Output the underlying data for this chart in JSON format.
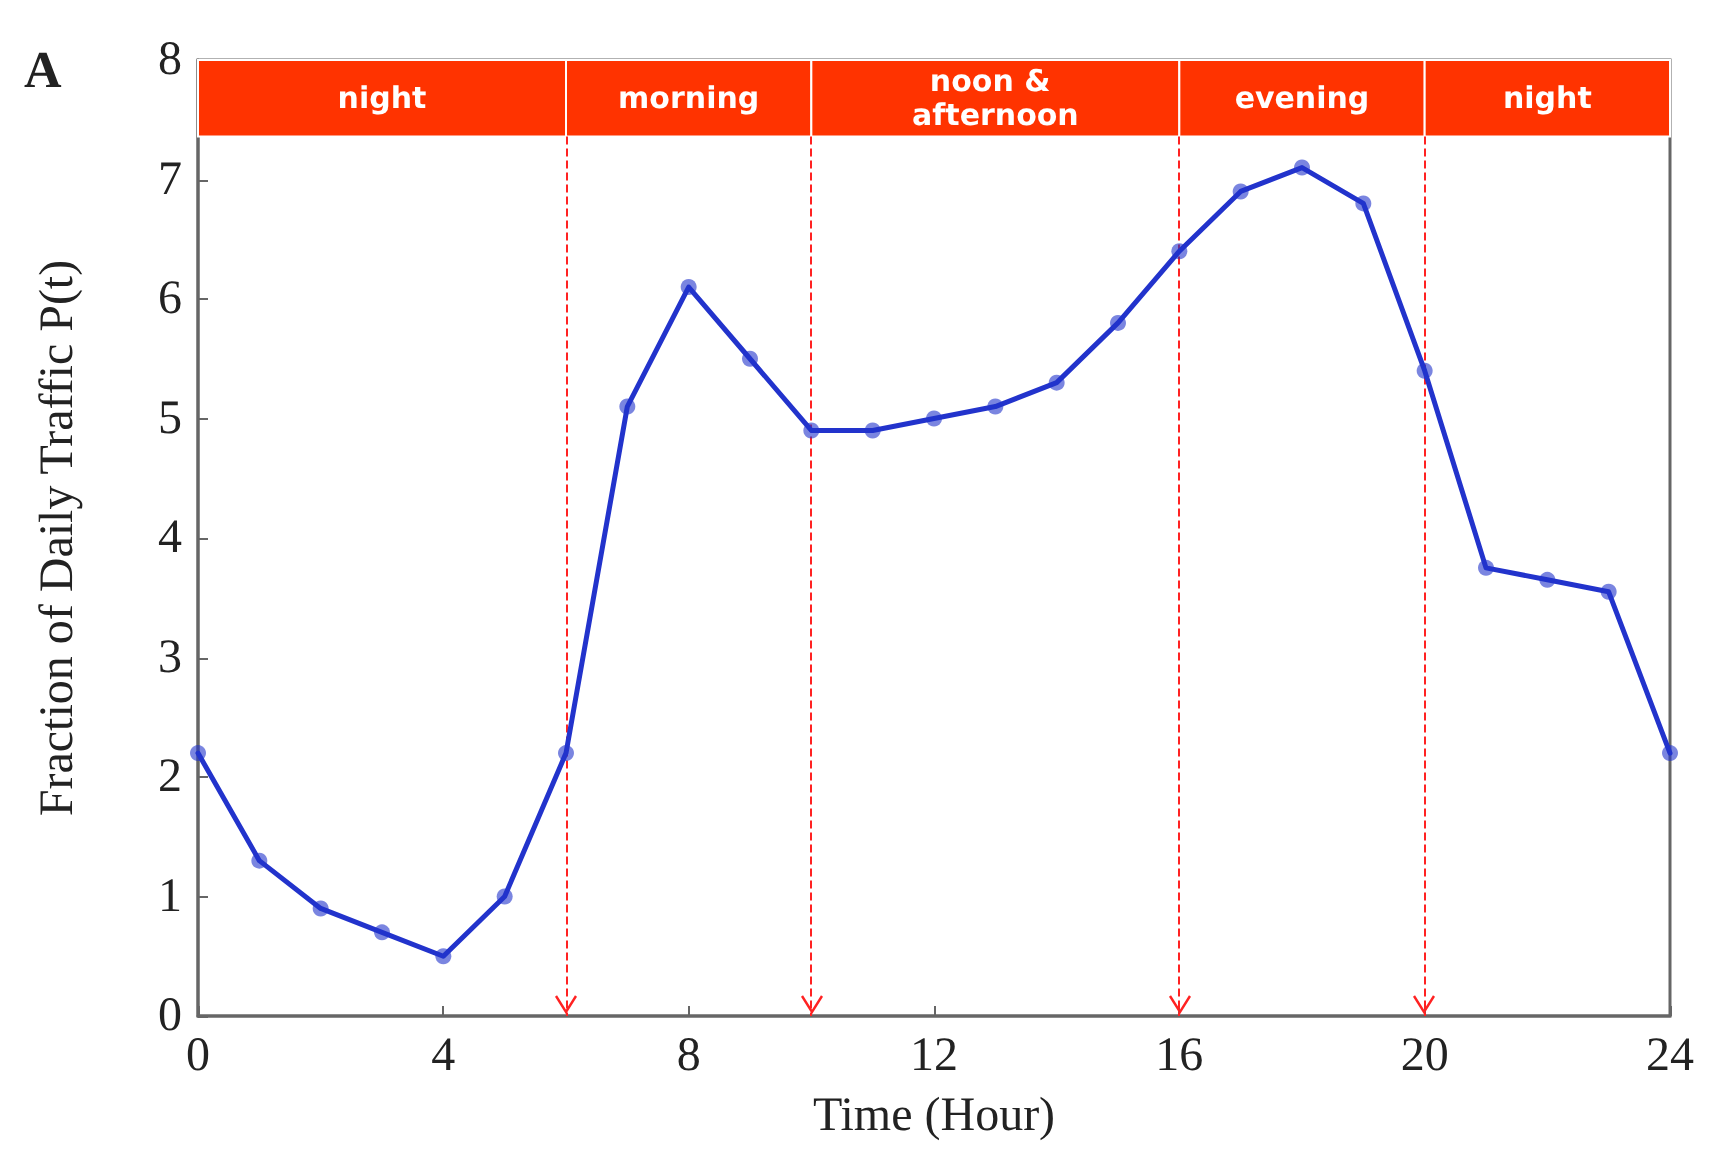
{
  "chart_data": {
    "type": "line",
    "xlabel": "Time (Hour)",
    "ylabel": "Fraction of Daily Traffic P(t)",
    "annotations": [
      "A"
    ],
    "x": [
      0,
      1,
      2,
      3,
      4,
      5,
      6,
      7,
      8,
      9,
      10,
      11,
      12,
      13,
      14,
      15,
      16,
      17,
      18,
      19,
      20,
      21,
      22,
      23,
      24
    ],
    "series": [
      {
        "color": "#2233cc",
        "values": [
          2.2,
          1.3,
          0.9,
          0.7,
          0.5,
          1.0,
          2.2,
          5.1,
          6.1,
          5.5,
          4.9,
          4.9,
          5.0,
          5.1,
          5.3,
          5.8,
          6.4,
          6.9,
          7.1,
          6.8,
          5.4,
          3.75,
          3.65,
          3.55,
          2.2
        ]
      }
    ],
    "xlim": [
      0,
      24
    ],
    "xticks": [
      0,
      4,
      8,
      12,
      16,
      20,
      24
    ],
    "ylim": [
      0,
      8
    ],
    "yticks": [
      0,
      1,
      2,
      3,
      4,
      5,
      6,
      7,
      8
    ],
    "marker": "circle",
    "line_style": "solid",
    "grid": false,
    "bands": [
      {
        "axis": "x",
        "from": 0,
        "to": 6,
        "label": "night",
        "color": "#ff3300"
      },
      {
        "axis": "x",
        "from": 6,
        "to": 10,
        "label": "morning",
        "color": "#ff3300"
      },
      {
        "axis": "x",
        "from": 10,
        "to": 16,
        "label": "noon & afternoon",
        "color": "#ff3300"
      },
      {
        "axis": "x",
        "from": 16,
        "to": 20,
        "label": "evening",
        "color": "#ff3300"
      },
      {
        "axis": "x",
        "from": 20,
        "to": 24,
        "label": "night",
        "color": "#ff3300"
      }
    ],
    "ref_lines": [
      {
        "axis": "x",
        "value": 6,
        "color": "#ff2222",
        "line_style": "dashed"
      },
      {
        "axis": "x",
        "value": 10,
        "color": "#ff2222",
        "line_style": "dashed"
      },
      {
        "axis": "x",
        "value": 16,
        "color": "#ff2222",
        "line_style": "dashed"
      },
      {
        "axis": "x",
        "value": 20,
        "color": "#ff2222",
        "line_style": "dashed"
      }
    ]
  }
}
